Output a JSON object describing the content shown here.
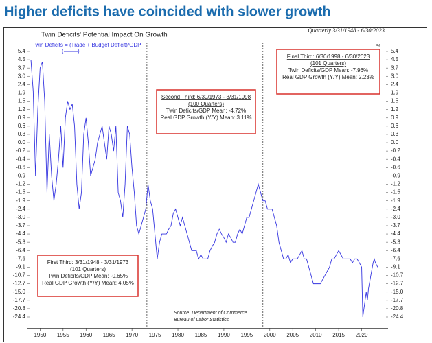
{
  "chart_data": {
    "type": "line",
    "heading": "Higher deficits have coincided with slower growth",
    "title": "Twin Deficits' Potential Impact On Growth",
    "period": "Quarterly 3/31/1948 - 6/30/2023",
    "unit": "%",
    "yscale": "tick-spaced",
    "grid": false,
    "xlim": [
      1948,
      2025
    ],
    "xticks": [
      1950,
      1955,
      1960,
      1965,
      1970,
      1975,
      1980,
      1985,
      1990,
      1995,
      2000,
      2005,
      2010,
      2015,
      2020
    ],
    "ylim": [
      5.4,
      -24.4
    ],
    "yticks": [
      5.4,
      4.5,
      3.7,
      {
        "value": 3,
        "label": "3.0"
      },
      2.4,
      1.9,
      1.5,
      1.2,
      0.9,
      0.6,
      0.3,
      {
        "value": 0,
        "label": "0.0"
      },
      -0.2,
      -0.4,
      -0.6,
      -0.9,
      -1.2,
      -1.5,
      -1.9,
      -2.4,
      {
        "value": -3,
        "label": "-3.0"
      },
      -3.7,
      -4.4,
      -5.3,
      -6.4,
      -7.6,
      -9.1,
      -10.7,
      -12.7,
      {
        "value": -15,
        "label": "-15.0"
      },
      -17.7,
      -20.8,
      -24.4
    ],
    "dividers": [
      1973.25,
      1998.5
    ],
    "x": [
      1948,
      1948.5,
      1949,
      1949.5,
      1950,
      1950.5,
      1951,
      1951.5,
      1952,
      1952.5,
      1953,
      1953.5,
      1954,
      1954.5,
      1955,
      1955.5,
      1956,
      1956.5,
      1957,
      1957.5,
      1958,
      1958.5,
      1959,
      1959.5,
      1960,
      1960.5,
      1961,
      1961.5,
      1962,
      1962.5,
      1963,
      1963.5,
      1964,
      1964.5,
      1965,
      1965.5,
      1966,
      1966.5,
      1967,
      1967.5,
      1968,
      1968.5,
      1969,
      1969.5,
      1970,
      1970.5,
      1971,
      1971.5,
      1972,
      1972.5,
      1973,
      1973.5,
      1974,
      1974.5,
      1975,
      1975.5,
      1976,
      1976.5,
      1977,
      1977.5,
      1978,
      1978.5,
      1979,
      1979.5,
      1980,
      1980.5,
      1981,
      1981.5,
      1982,
      1982.5,
      1983,
      1983.5,
      1984,
      1984.5,
      1985,
      1985.5,
      1986,
      1986.5,
      1987,
      1987.5,
      1988,
      1988.5,
      1989,
      1989.5,
      1990,
      1990.5,
      1991,
      1991.5,
      1992,
      1992.5,
      1993,
      1993.5,
      1994,
      1994.5,
      1995,
      1995.5,
      1996,
      1996.5,
      1997,
      1997.5,
      1998,
      1998.5,
      1999,
      1999.5,
      2000,
      2000.5,
      2001,
      2001.5,
      2002,
      2002.5,
      2003,
      2003.5,
      2004,
      2004.5,
      2005,
      2005.5,
      2006,
      2006.5,
      2007,
      2007.5,
      2008,
      2008.5,
      2009,
      2009.5,
      2010,
      2010.5,
      2011,
      2011.5,
      2012,
      2012.5,
      2013,
      2013.5,
      2014,
      2014.5,
      2015,
      2015.5,
      2016,
      2016.5,
      2017,
      2017.5,
      2018,
      2018.5,
      2019,
      2019.5,
      2020,
      2020.25,
      2020.5,
      2021,
      2021.25,
      2021.5,
      2022,
      2022.5,
      2022.75,
      2023,
      2023.5
    ],
    "series": [
      {
        "name": "Twin Deficits =  (Trade +  Budget Deficit)/GDP",
        "color": "#3434e0",
        "values": [
          4.5,
          2.0,
          -0.9,
          1.2,
          3.7,
          4.3,
          1.5,
          -1.5,
          0.3,
          -0.9,
          -1.9,
          -1.2,
          -0.4,
          0.6,
          -0.6,
          0.9,
          1.5,
          1.2,
          1.4,
          0.6,
          -1.2,
          -2.4,
          -1.5,
          0.3,
          0.9,
          0.0,
          -0.9,
          -0.6,
          -0.4,
          0.0,
          0.3,
          0.6,
          0.0,
          -0.4,
          0.6,
          0.3,
          -0.2,
          0.6,
          -1.5,
          -1.9,
          -3.0,
          -1.2,
          0.6,
          0.3,
          -0.6,
          -1.5,
          -3.7,
          -4.4,
          -3.7,
          -3.0,
          -2.4,
          -1.2,
          -1.9,
          -2.4,
          -4.4,
          -7.6,
          -5.3,
          -4.4,
          -4.4,
          -4.4,
          -4.0,
          -3.7,
          -2.7,
          -2.4,
          -3.0,
          -3.7,
          -3.0,
          -3.7,
          -4.4,
          -5.3,
          -6.4,
          -6.4,
          -6.4,
          -7.6,
          -7.0,
          -7.6,
          -7.6,
          -7.6,
          -6.4,
          -5.8,
          -5.3,
          -4.4,
          -4.0,
          -4.4,
          -4.8,
          -5.3,
          -4.4,
          -4.8,
          -5.3,
          -5.3,
          -4.4,
          -4.0,
          -4.4,
          -3.7,
          -3.0,
          -3.0,
          -2.4,
          -1.9,
          -1.5,
          -1.2,
          -1.5,
          -1.9,
          -1.9,
          -2.4,
          -2.4,
          -2.4,
          -3.0,
          -3.7,
          -5.3,
          -6.4,
          -7.6,
          -7.6,
          -7.0,
          -8.3,
          -7.6,
          -7.6,
          -7.6,
          -7.0,
          -6.4,
          -7.6,
          -7.6,
          -9.1,
          -10.7,
          -12.7,
          -12.7,
          -12.7,
          -12.7,
          -11.7,
          -10.7,
          -9.9,
          -9.1,
          -7.6,
          -7.6,
          -7.0,
          -6.4,
          -7.0,
          -7.6,
          -7.6,
          -7.6,
          -7.6,
          -8.3,
          -7.6,
          -7.6,
          -8.3,
          -9.1,
          -24.4,
          -20.8,
          -15.0,
          -17.7,
          -14.0,
          -10.7,
          -8.3,
          -7.6,
          -8.3,
          -9.1
        ]
      }
    ],
    "annotations": [
      {
        "lines": [
          "First Third: 3/31/1948 - 3/31/1973",
          "(101 Quarters)",
          "Twin Deficits/GDP Mean: -0.65%",
          "Real GDP Growth (Y/Y) Mean: 4.05%"
        ]
      },
      {
        "lines": [
          "Second Third: 6/30/1973 - 3/31/1998",
          "(100 Quarters)",
          "Twin Deficits/GDP Mean: -4.72%",
          "Real GDP Growth (Y/Y) Mean: 3.11%"
        ]
      },
      {
        "lines": [
          "Final Third: 6/30/1998 - 6/30/2023",
          "(101 Quarters)",
          "Twin Deficits/GDP Mean: -7.96%",
          "Real GDP Growth (Y/Y) Mean: 2.23%"
        ]
      }
    ],
    "source": [
      "Source: Department of Commerce",
      "Bureau of Labor Statistics"
    ]
  }
}
